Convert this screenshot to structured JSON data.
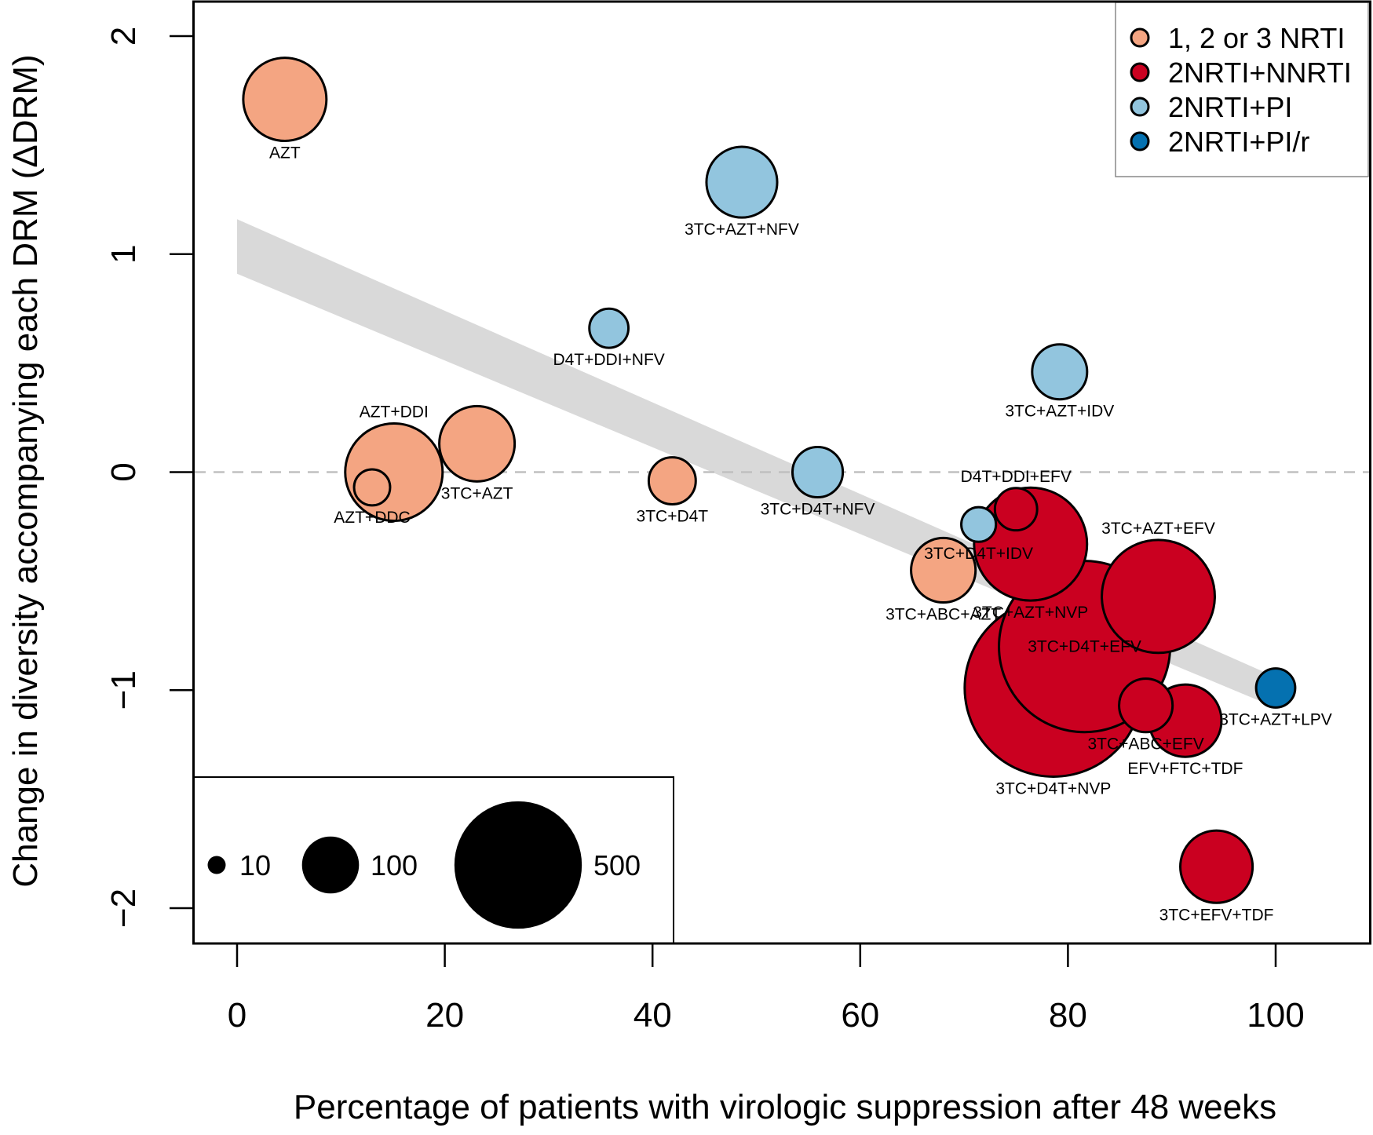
{
  "chart_data": {
    "type": "scatter",
    "subtype": "bubble",
    "title": "",
    "xlabel": "Percentage of patients with virologic suppression after 48 weeks",
    "ylabel": "Change in diversity accompanying each DRM (ΔDRM)",
    "xlim": [
      -4,
      108.5
    ],
    "ylim": [
      -2.15,
      2.15
    ],
    "xticks": [
      0,
      20,
      40,
      60,
      80,
      100
    ],
    "yticks": [
      -2,
      -1,
      0,
      1,
      2
    ],
    "grid": false,
    "reference_line": {
      "y": 0,
      "style": "dashed",
      "color": "#c0c0c0"
    },
    "regression_band": {
      "x": [
        0,
        100
      ],
      "upper": [
        1.16,
        -0.94
      ],
      "lower": [
        0.91,
        -1.08
      ],
      "color": "#d9d9d9"
    },
    "groups": [
      {
        "name": "1, 2 or 3 NRTI",
        "color": "#f4a582"
      },
      {
        "name": "2NRTI+NNRTI",
        "color": "#ca0020"
      },
      {
        "name": "2NRTI+PI",
        "color": "#92c5de"
      },
      {
        "name": "2NRTI+PI/r",
        "color": "#0571b0"
      }
    ],
    "legend_position": "top-right",
    "size_legend": {
      "position": "bottom-left",
      "values": [
        10,
        100,
        500
      ],
      "labels": [
        "10",
        "100",
        "500"
      ]
    },
    "points": [
      {
        "label": "AZT",
        "group": "1, 2 or 3 NRTI",
        "x": 4.6,
        "y": 1.71,
        "n": 213,
        "label_pos": "below"
      },
      {
        "label": "AZT+DDI",
        "group": "1, 2 or 3 NRTI",
        "x": 15.1,
        "y": 0.0,
        "n": 292,
        "label_pos": "above"
      },
      {
        "label": "3TC+AZT",
        "group": "1, 2 or 3 NRTI",
        "x": 23.1,
        "y": 0.13,
        "n": 175,
        "label_pos": "below"
      },
      {
        "label": "AZT+DDC",
        "group": "1, 2 or 3 NRTI",
        "x": 13.0,
        "y": -0.07,
        "n": 40,
        "label_pos": "below"
      },
      {
        "label": "3TC+D4T",
        "group": "1, 2 or 3 NRTI",
        "x": 41.9,
        "y": -0.04,
        "n": 68,
        "label_pos": "below"
      },
      {
        "label": "3TC+ABC+AZT",
        "group": "1, 2 or 3 NRTI",
        "x": 68.0,
        "y": -0.45,
        "n": 128,
        "label_pos": "below"
      },
      {
        "label": "3TC+AZT+NFV",
        "group": "2NRTI+PI",
        "x": 48.6,
        "y": 1.33,
        "n": 154,
        "label_pos": "below"
      },
      {
        "label": "D4T+DDI+NFV",
        "group": "2NRTI+PI",
        "x": 35.8,
        "y": 0.66,
        "n": 47,
        "label_pos": "below"
      },
      {
        "label": "3TC+AZT+IDV",
        "group": "2NRTI+PI",
        "x": 79.2,
        "y": 0.46,
        "n": 93,
        "label_pos": "below"
      },
      {
        "label": "3TC+D4T+NFV",
        "group": "2NRTI+PI",
        "x": 55.9,
        "y": 0.0,
        "n": 78,
        "label_pos": "below"
      },
      {
        "label": "3TC+D4T+NVP",
        "group": "2NRTI+NNRTI",
        "x": 78.6,
        "y": -0.99,
        "n": 969,
        "label_pos": "below"
      },
      {
        "label": "3TC+D4T+EFV",
        "group": "2NRTI+NNRTI",
        "x": 81.6,
        "y": -0.8,
        "n": 902,
        "label_pos": "center"
      },
      {
        "label": "3TC+AZT+NVP",
        "group": "2NRTI+NNRTI",
        "x": 76.4,
        "y": -0.33,
        "n": 393,
        "label_pos": "below"
      },
      {
        "label": "3TC+AZT+EFV",
        "group": "2NRTI+NNRTI",
        "x": 88.7,
        "y": -0.57,
        "n": 393,
        "label_pos": "above"
      },
      {
        "label": "3TC+D4T+IDV",
        "group": "2NRTI+PI",
        "x": 71.4,
        "y": -0.24,
        "n": 37,
        "label_pos": "below"
      },
      {
        "label": "D4T+DDI+EFV",
        "group": "2NRTI+NNRTI",
        "x": 75.0,
        "y": -0.17,
        "n": 55,
        "label_pos": "above"
      },
      {
        "label": "EFV+FTC+TDF",
        "group": "2NRTI+NNRTI",
        "x": 91.3,
        "y": -1.14,
        "n": 161,
        "label_pos": "below"
      },
      {
        "label": "3TC+ABC+EFV",
        "group": "2NRTI+NNRTI",
        "x": 87.5,
        "y": -1.07,
        "n": 88,
        "label_pos": "below"
      },
      {
        "label": "3TC+AZT+LPV",
        "group": "2NRTI+PI/r",
        "x": 100.0,
        "y": -0.99,
        "n": 47,
        "label_pos": "below"
      },
      {
        "label": "3TC+EFV+TDF",
        "group": "2NRTI+NNRTI",
        "x": 94.3,
        "y": -1.81,
        "n": 161,
        "label_pos": "below"
      }
    ]
  }
}
